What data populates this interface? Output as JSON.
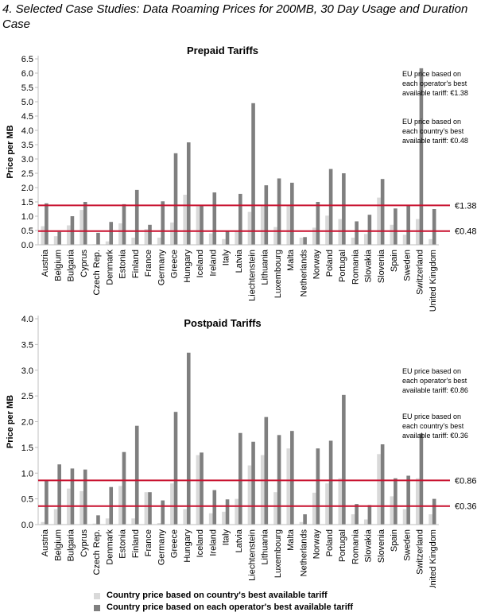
{
  "figure_title": "4. Selected Case Studies: Data Roaming Prices for 200MB, 30 Day Usage and Duration Case",
  "colors": {
    "light": "#d9d9d9",
    "dark": "#7f7f7f",
    "line": "#c8102e",
    "axis": "#bfbfbf"
  },
  "legend": {
    "light_label": "Country price based on country's best available tariff",
    "dark_label": "Country price based on each operator's best available tariff"
  },
  "chart_data": [
    {
      "type": "bar",
      "title": "Prepaid Tariffs",
      "ylabel": "Price per MB",
      "ylim": [
        0,
        6.5
      ],
      "yticks": [
        "0.0",
        "0.5",
        "1.0",
        "1.5",
        "2.0",
        "2.5",
        "3.0",
        "3.5",
        "4.0",
        "4.5",
        "5.0",
        "5.5",
        "6.0",
        "6.5"
      ],
      "categories": [
        "Austria",
        "Belgium",
        "Bulgaria",
        "Cyprus",
        "Czech Rep.",
        "Denmark",
        "Estonia",
        "Finland",
        "France",
        "Germany",
        "Greece",
        "Hungary",
        "Iceland",
        "Ireland",
        "Italy",
        "Latvia",
        "Liechtenstein",
        "Lithuania",
        "Luxembourg",
        "Malta",
        "Netherlands",
        "Norway",
        "Poland",
        "Portugal",
        "Romania",
        "Slovakia",
        "Slovenia",
        "Spain",
        "Sweden",
        "Switzerland",
        "United Kingdom"
      ],
      "series": [
        {
          "name": "Country price based on country's best available tariff",
          "values": [
            0.65,
            0.3,
            0.68,
            1.22,
            0.02,
            0.12,
            0.75,
            0.25,
            0.55,
            0.25,
            0.78,
            1.75,
            1.35,
            0.4,
            0.2,
            0.5,
            1.15,
            1.35,
            0.62,
            1.4,
            0.25,
            0.6,
            1.02,
            0.9,
            0.25,
            0.38,
            1.65,
            0.7,
            0.35,
            0.9,
            0.2
          ]
        },
        {
          "name": "Country price based on each operator's best available tariff",
          "values": [
            1.45,
            0.45,
            1.0,
            1.5,
            0.42,
            0.8,
            1.42,
            1.92,
            0.7,
            1.52,
            3.2,
            3.58,
            1.4,
            1.83,
            0.5,
            1.78,
            4.95,
            2.08,
            2.32,
            2.17,
            0.27,
            1.5,
            2.65,
            2.5,
            0.82,
            1.05,
            2.3,
            1.27,
            1.37,
            6.17,
            1.25
          ]
        }
      ],
      "reference_lines": [
        {
          "value": 1.38,
          "label": "€1.38",
          "note": [
            "EU price based on",
            "each operator's best",
            "available tariff: €1.38"
          ]
        },
        {
          "value": 0.48,
          "label": "€0.48",
          "note": [
            "EU price based on",
            "each country's best",
            "available tariff: €0.48"
          ]
        }
      ]
    },
    {
      "type": "bar",
      "title": "Postpaid Tariffs",
      "ylabel": "Price per MB",
      "ylim": [
        0,
        4.0
      ],
      "yticks": [
        "0.0",
        "0.5",
        "1.0",
        "1.5",
        "2.0",
        "2.5",
        "3.0",
        "3.5",
        "4.0"
      ],
      "categories": [
        "Austria",
        "Belgium",
        "Bulgaria",
        "Cyprus",
        "Czech Rep.",
        "Denmark",
        "Estonia",
        "Finland",
        "France",
        "Germany",
        "Greece",
        "Hungary",
        "Iceland",
        "Ireland",
        "Italy",
        "Latvia",
        "Liechtenstein",
        "Lithuania",
        "Luxembourg",
        "Malta",
        "Netherlands",
        "Norway",
        "Poland",
        "Portugal",
        "Romania",
        "Slovakia",
        "Slovenia",
        "Spain",
        "Sweden",
        "Switzerland",
        "United Kingdom"
      ],
      "series": [
        {
          "name": "Country price based on country's best available tariff",
          "values": [
            0.05,
            0.3,
            0.7,
            0.65,
            0.02,
            0.12,
            0.75,
            0.12,
            0.63,
            0.03,
            0.8,
            0.3,
            1.35,
            0.22,
            0.25,
            0.5,
            1.15,
            1.35,
            0.63,
            1.48,
            0.05,
            0.62,
            0.8,
            0.9,
            0.2,
            0.1,
            1.37,
            0.55,
            0.3,
            0.9,
            0.2
          ]
        },
        {
          "name": "Country price based on each operator's best available tariff",
          "values": [
            0.85,
            1.17,
            1.09,
            1.07,
            0.18,
            0.73,
            1.41,
            1.92,
            0.63,
            0.47,
            2.19,
            3.34,
            1.4,
            0.67,
            0.49,
            1.78,
            1.61,
            2.09,
            1.74,
            1.82,
            0.2,
            1.48,
            1.63,
            2.52,
            0.4,
            0.38,
            1.56,
            0.9,
            0.95,
            1.77,
            0.5
          ]
        }
      ],
      "reference_lines": [
        {
          "value": 0.86,
          "label": "€0.86",
          "note": [
            "EU price based on",
            "each operator's best",
            "available tariff: €0.86"
          ]
        },
        {
          "value": 0.36,
          "label": "€0.36",
          "note": [
            "EU price based on",
            "each country's best",
            "available tariff: €0.36"
          ]
        }
      ]
    }
  ]
}
